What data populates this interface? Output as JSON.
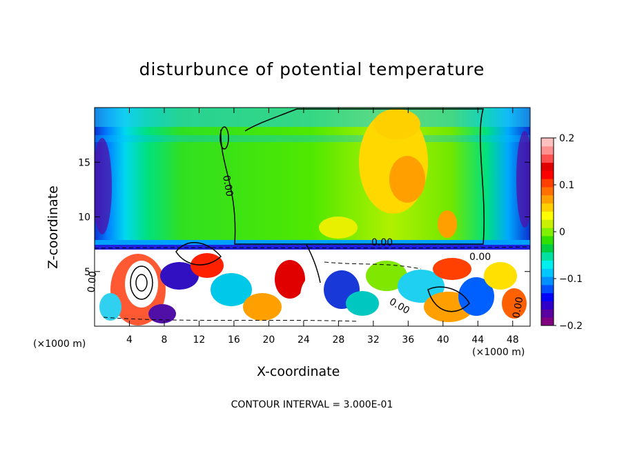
{
  "chart_data": {
    "type": "heatmap",
    "title": "disturbunce of potential temperature",
    "xlabel": "X-coordinate",
    "ylabel": "Z-coordinate",
    "x_unit": "(×1000 m)",
    "z_unit": "(×1000 m)",
    "x_ticks": [
      4,
      8,
      12,
      16,
      20,
      24,
      28,
      32,
      36,
      40,
      44,
      48
    ],
    "y_ticks": [
      5,
      10,
      15
    ],
    "xlim": [
      0,
      50
    ],
    "ylim": [
      0,
      20
    ],
    "colorbar": {
      "range": [
        -0.2,
        0.2
      ],
      "tick_labels": [
        "0.2",
        "0.1",
        "0",
        "−0.1",
        "−0.2"
      ],
      "tick_values": [
        0.2,
        0.1,
        0,
        -0.1,
        -0.2
      ],
      "colors": [
        "#800080",
        "#5a00a0",
        "#3000c8",
        "#0000ff",
        "#0050ff",
        "#0090ff",
        "#00c8ff",
        "#00f0f0",
        "#00e0a0",
        "#00d040",
        "#30e000",
        "#80f000",
        "#c8f000",
        "#ffff00",
        "#ffd000",
        "#ffa000",
        "#ff7000",
        "#ff4000",
        "#ff0000",
        "#e00000",
        "#ff5050",
        "#ff9090",
        "#ffc0c0"
      ]
    },
    "contour_labels": [
      "0.00",
      "0.00",
      "0.00",
      "0.00",
      "0.00",
      "0.00"
    ],
    "contour_interval_text": "CONTOUR INTERVAL = 3.000E-01"
  }
}
